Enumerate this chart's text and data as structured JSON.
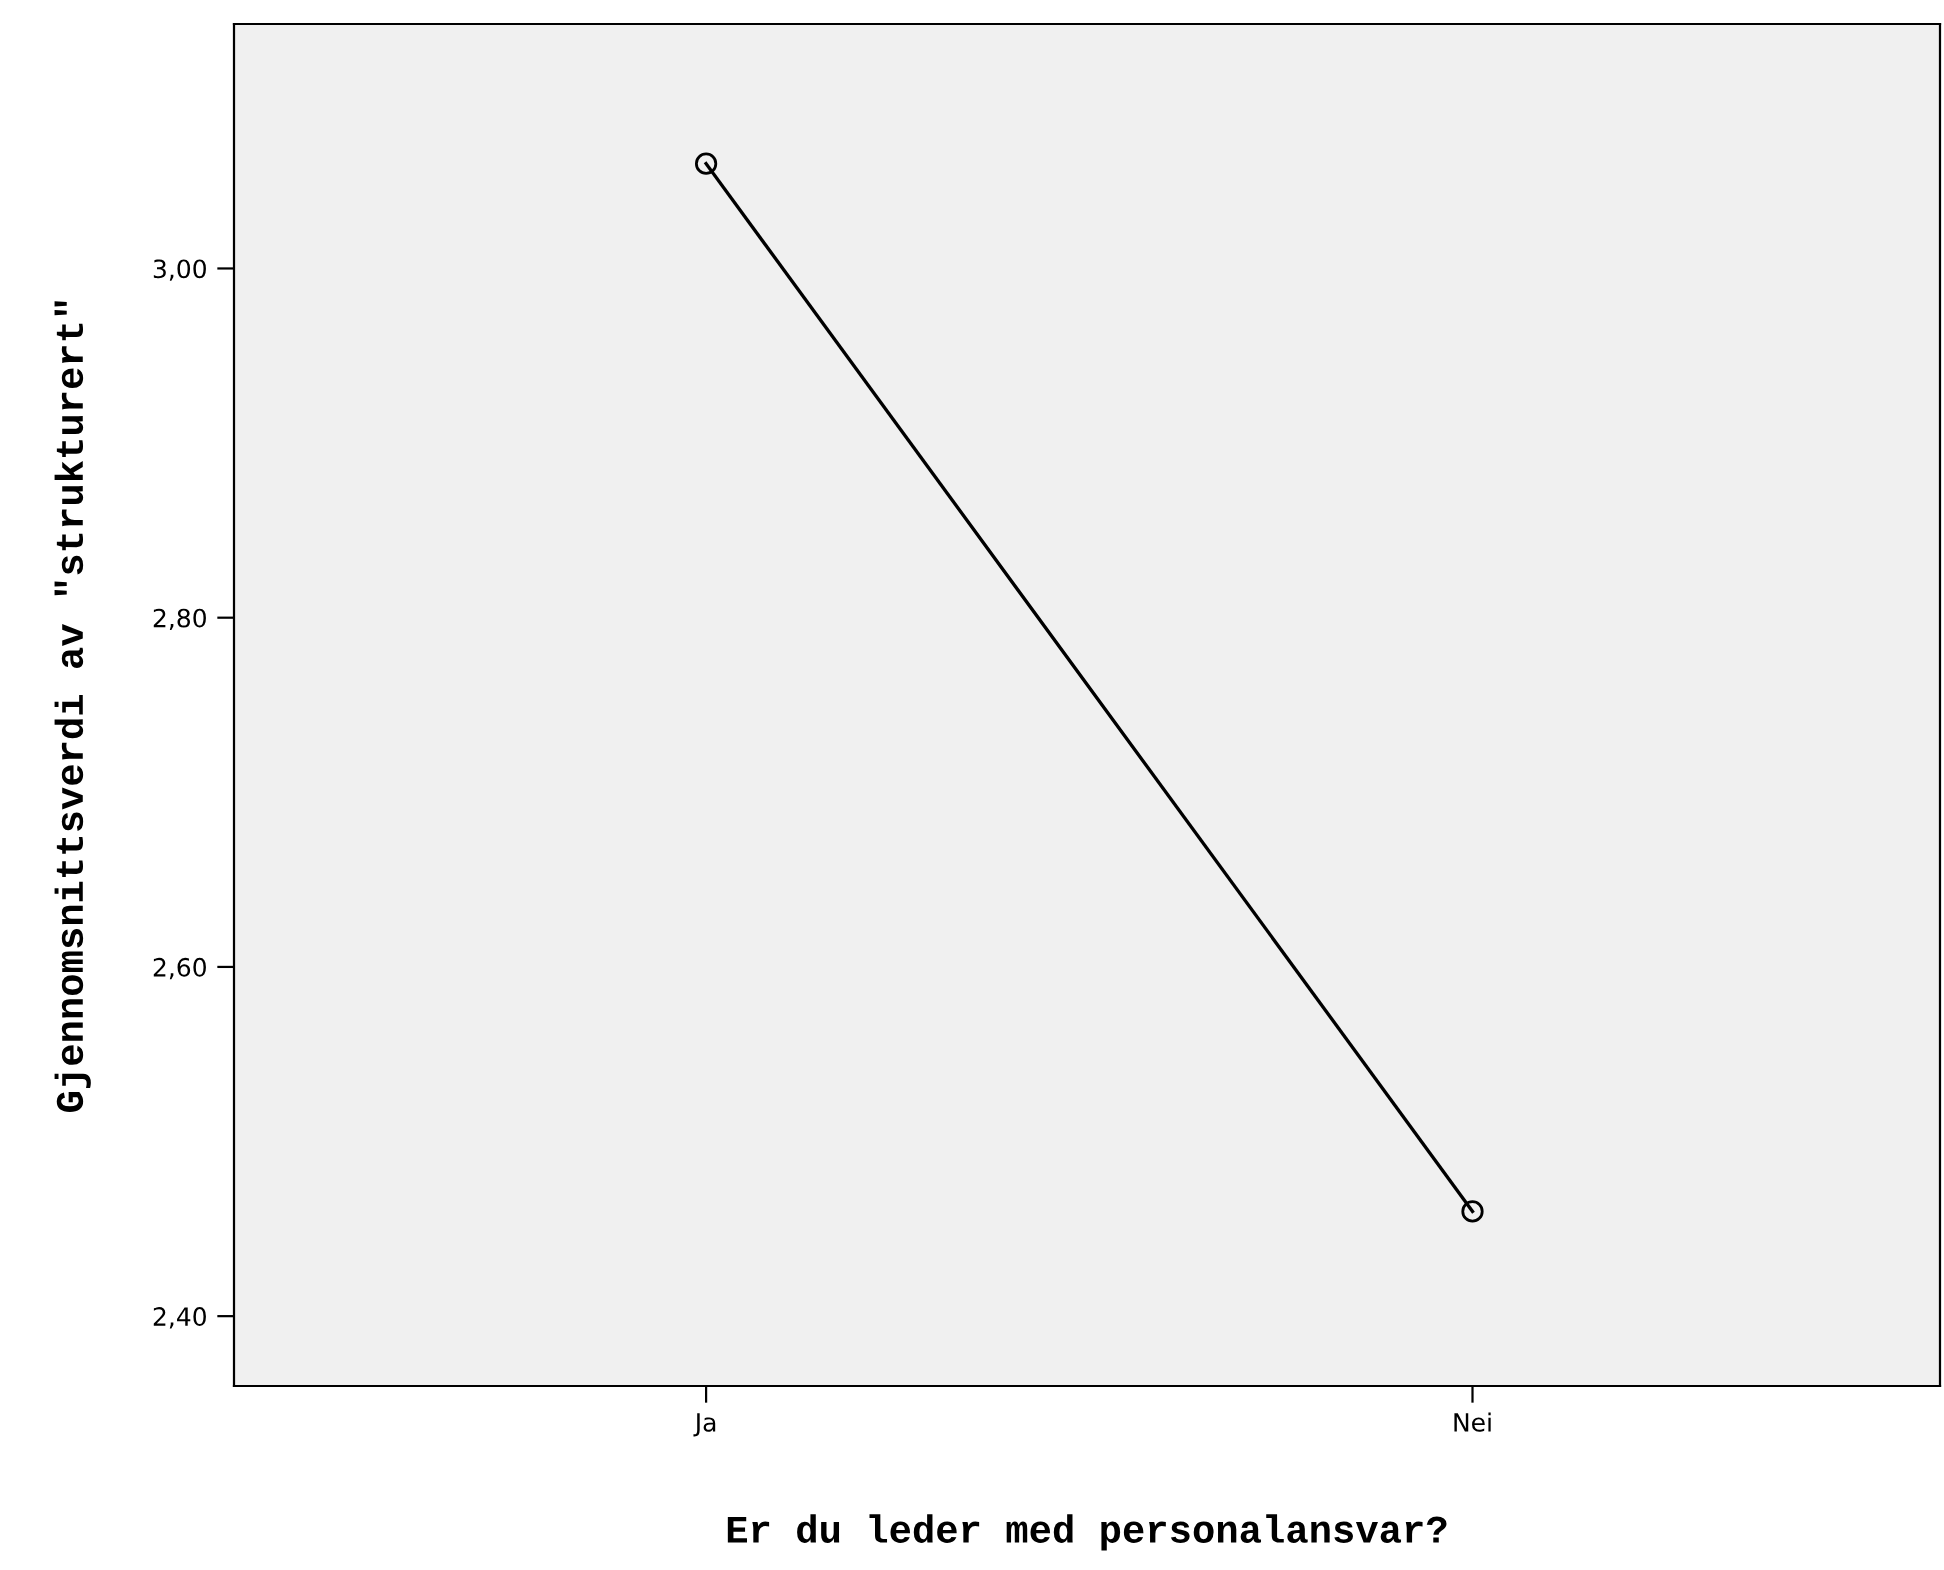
{
  "chart_data": {
    "type": "line",
    "xlabel": "Er du leder med personalansvar?",
    "ylabel": "Gjennomsnittsverdi av \"strukturert\"",
    "categories": [
      "Ja",
      "Nei"
    ],
    "series": [
      {
        "color": "#000000",
        "values": [
          3.06,
          2.46
        ]
      }
    ],
    "ylim": [
      2.36,
      3.14
    ],
    "yticks": [
      {
        "value": 2.4,
        "label": "2,40"
      },
      {
        "value": 2.6,
        "label": "2,60"
      },
      {
        "value": 2.8,
        "label": "2,80"
      },
      {
        "value": 3.0,
        "label": "3,00"
      }
    ],
    "marker": "circle",
    "line_style": "solid",
    "grid": false,
    "legend": false
  }
}
